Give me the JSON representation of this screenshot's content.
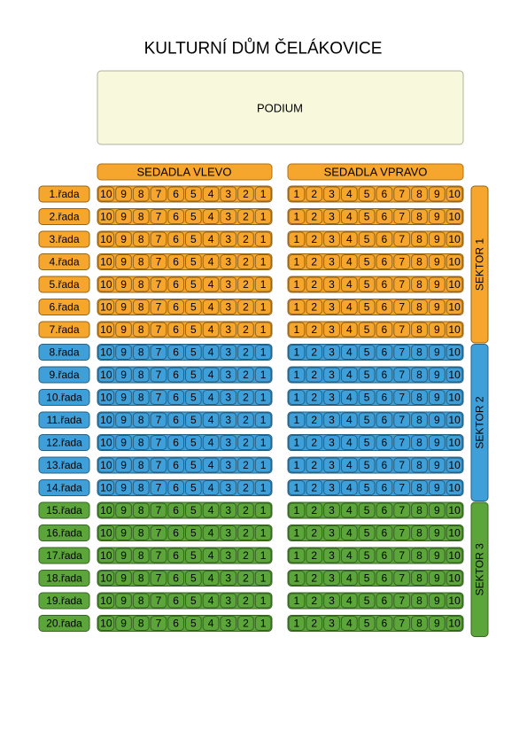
{
  "title": "KULTURNÍ DŮM ČELÁKOVICE",
  "podium": "PODIUM",
  "left_header": "SEDADLA VLEVO",
  "right_header": "SEDADLA VPRAVO",
  "left_seats": [
    "10",
    "9",
    "8",
    "7",
    "6",
    "5",
    "4",
    "3",
    "2",
    "1"
  ],
  "right_seats": [
    "1",
    "2",
    "3",
    "4",
    "5",
    "6",
    "7",
    "8",
    "9",
    "10"
  ],
  "sectors": [
    {
      "label": "SEKTOR 1",
      "color": "#f6a62c",
      "rows": [
        "1.řada",
        "2.řada",
        "3.řada",
        "4.řada",
        "5.řada",
        "6.řada",
        "7.řada"
      ]
    },
    {
      "label": "SEKTOR 2",
      "color": "#3fa0d9",
      "rows": [
        "8.řada",
        "9.řada",
        "10.řada",
        "11.řada",
        "12.řada",
        "13.řada",
        "14.řada"
      ]
    },
    {
      "label": "SEKTOR 3",
      "color": "#5ba53a",
      "rows": [
        "15.řada",
        "16.řada",
        "17.řada",
        "18.řada",
        "19.řada",
        "20.řada"
      ]
    }
  ]
}
